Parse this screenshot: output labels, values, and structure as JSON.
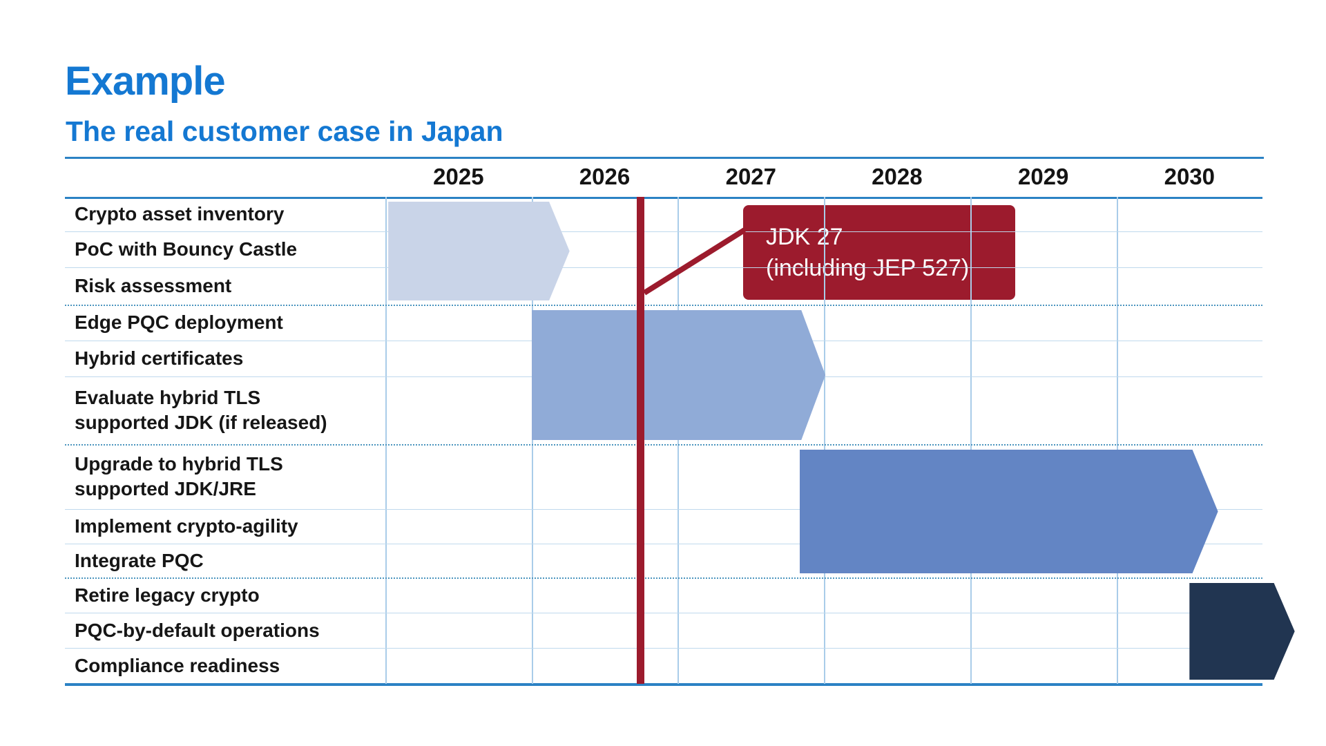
{
  "slide": {
    "title": "Example",
    "subtitle": "The real customer case in Japan"
  },
  "chart_data": {
    "type": "gantt",
    "title": "Example",
    "subtitle": "The real customer case in Japan",
    "x_axis": {
      "unit": "year",
      "tick_labels": [
        "2025",
        "2026",
        "2027",
        "2028",
        "2029",
        "2030"
      ],
      "start": 2025,
      "end": 2031.1,
      "grid": "on",
      "legend": "none"
    },
    "groups": [
      {
        "tasks": [
          "Crypto asset inventory",
          "PoC with Bouncy Castle",
          "Risk assessment"
        ],
        "bar": {
          "start": 2025.02,
          "end": 2026.12,
          "tip": 2026.26,
          "color": "#C9D4E8"
        }
      },
      {
        "tasks": [
          "Edge PQC deployment",
          "Hybrid certificates",
          "Evaluate hybrid TLS\nsupported JDK (if released)"
        ],
        "bar": {
          "start": 2026.0,
          "end": 2027.845,
          "tip": 2028.01,
          "color": "#90ABD7"
        }
      },
      {
        "tasks": [
          "Upgrade to hybrid TLS\nsupported JDK/JRE",
          "Implement crypto-agility",
          "Integrate  PQC"
        ],
        "bar": {
          "start": 2027.833,
          "end": 2030.52,
          "tip": 2030.695,
          "color": "#6385C4"
        }
      },
      {
        "tasks": [
          "Retire legacy crypto",
          "PQC-by-default operations",
          "Compliance readiness"
        ],
        "bar": {
          "start": 2030.5,
          "end": 2031.078,
          "tip": 2031.22,
          "color": "#213551"
        }
      }
    ],
    "milestone": {
      "x": 2026.745,
      "label_line1": "JDK 27",
      "label_line2": "(including JEP 527)",
      "color": "#9C1B2D"
    }
  },
  "colors": {
    "title_blue": "#1478D2",
    "rule_blue": "#2B82C4",
    "thin_separator": "#BFD9ED",
    "dotted_separator": "#4A94BE",
    "vertical_grid": "#A9CCE9",
    "milestone_red": "#9C1B2D",
    "text_black": "#161616"
  }
}
